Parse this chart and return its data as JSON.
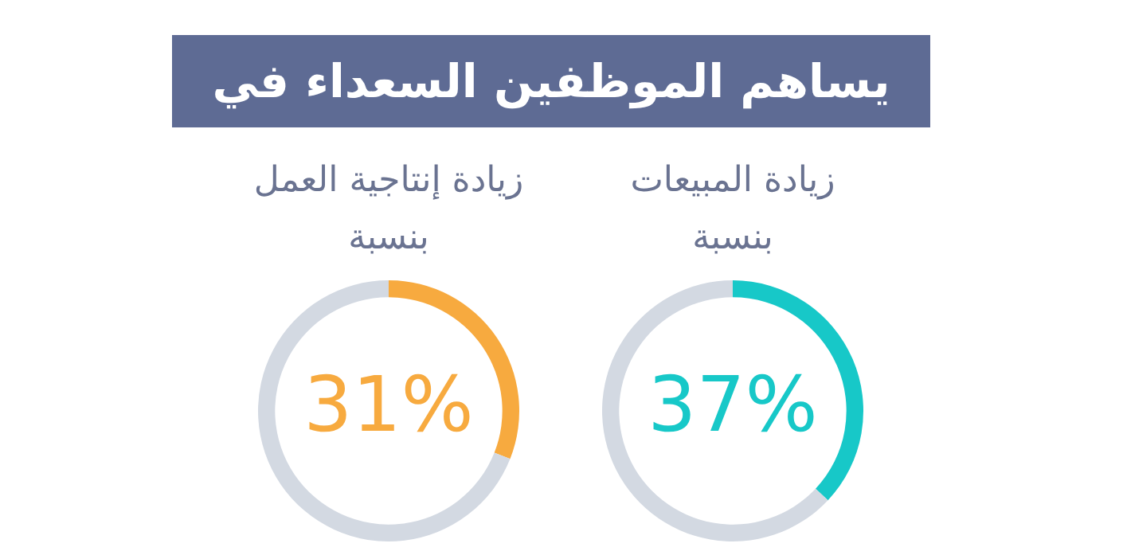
{
  "chart_data": [
    {
      "type": "other",
      "title": "يساهم الموظفين السعداء في"
    },
    {
      "type": "donut",
      "title": "زيادة المبيعات بنسبة",
      "categories": [
        null,
        null
      ],
      "values": [
        37,
        63
      ],
      "colors": [
        "#17c8c8",
        "#d3d9e2"
      ],
      "value_labels": [
        "37%",
        null
      ],
      "legend": false
    },
    {
      "type": "donut",
      "title": "زيادة إنتاجية العمل بنسبة",
      "categories": [
        null,
        null
      ],
      "values": [
        31,
        69
      ],
      "colors": [
        "#f7aa3f",
        "#d3d9e2"
      ],
      "value_labels": [
        "31%",
        null
      ],
      "legend": false
    }
  ]
}
